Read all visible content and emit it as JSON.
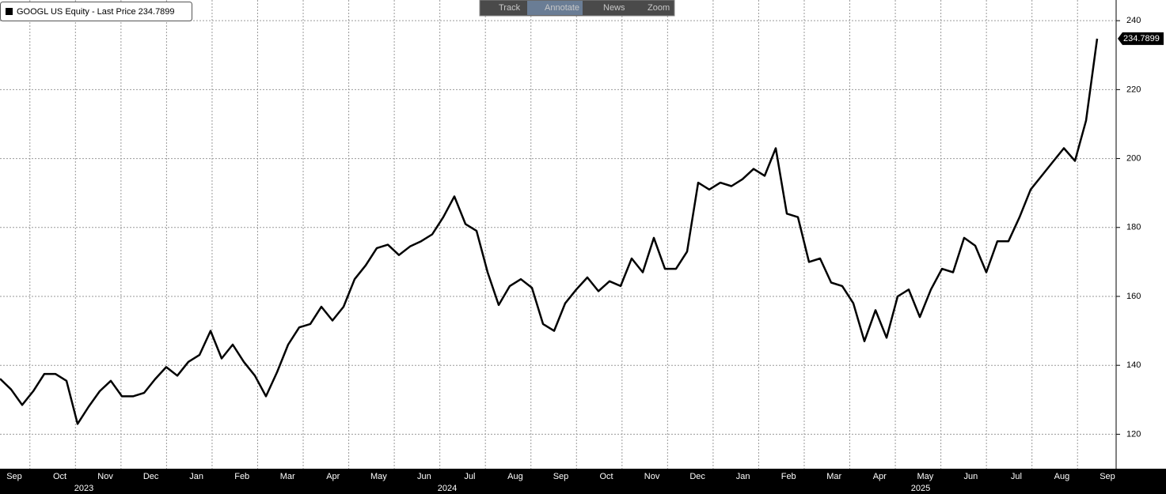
{
  "toolbar": [
    "Track",
    "Annotate",
    "News",
    "Zoom"
  ],
  "chart_data": {
    "type": "line",
    "legend_label": "GOOGL US Equity - Last Price",
    "x_labels": [
      "Sep",
      "Oct",
      "Nov",
      "Dec",
      "Jan",
      "Feb",
      "Mar",
      "Apr",
      "May",
      "Jun",
      "Jul",
      "Aug",
      "Sep",
      "Oct",
      "Nov",
      "Dec",
      "Jan",
      "Feb",
      "Mar",
      "Apr",
      "May",
      "Jun",
      "Jul",
      "Aug",
      "Sep"
    ],
    "year_labels": [
      "2023",
      "2024",
      "2025"
    ],
    "series": [
      {
        "name": "GOOGL US Equity",
        "color": "#000000",
        "values": [
          136.1,
          133,
          128.5,
          132.5,
          137.5,
          137.5,
          135.5,
          123,
          128,
          132.5,
          135.5,
          131,
          131,
          132,
          136,
          139.5,
          137,
          141,
          143,
          150,
          142,
          146,
          141,
          137,
          131,
          138,
          146,
          151,
          152,
          157,
          153,
          157,
          165,
          169,
          174,
          175,
          172,
          174.5,
          176,
          178,
          183,
          189,
          181,
          179,
          167,
          157.5,
          163,
          165,
          162.5,
          152,
          150,
          158,
          162,
          165.5,
          161.5,
          164.4,
          163,
          171,
          167,
          177,
          168,
          168,
          173,
          193,
          191,
          193,
          192,
          194,
          197,
          195,
          203,
          184,
          183,
          170,
          171,
          164,
          163,
          158,
          147,
          156,
          148,
          160,
          162,
          154,
          162,
          168,
          167,
          177,
          174.7,
          167,
          176,
          176,
          183,
          191,
          195,
          199,
          203,
          199.3,
          211,
          234.7899
        ]
      }
    ],
    "ylim": [
      110,
      246
    ],
    "yticks": [
      120,
      140,
      160,
      180,
      200,
      220,
      240
    ],
    "grid": true
  }
}
